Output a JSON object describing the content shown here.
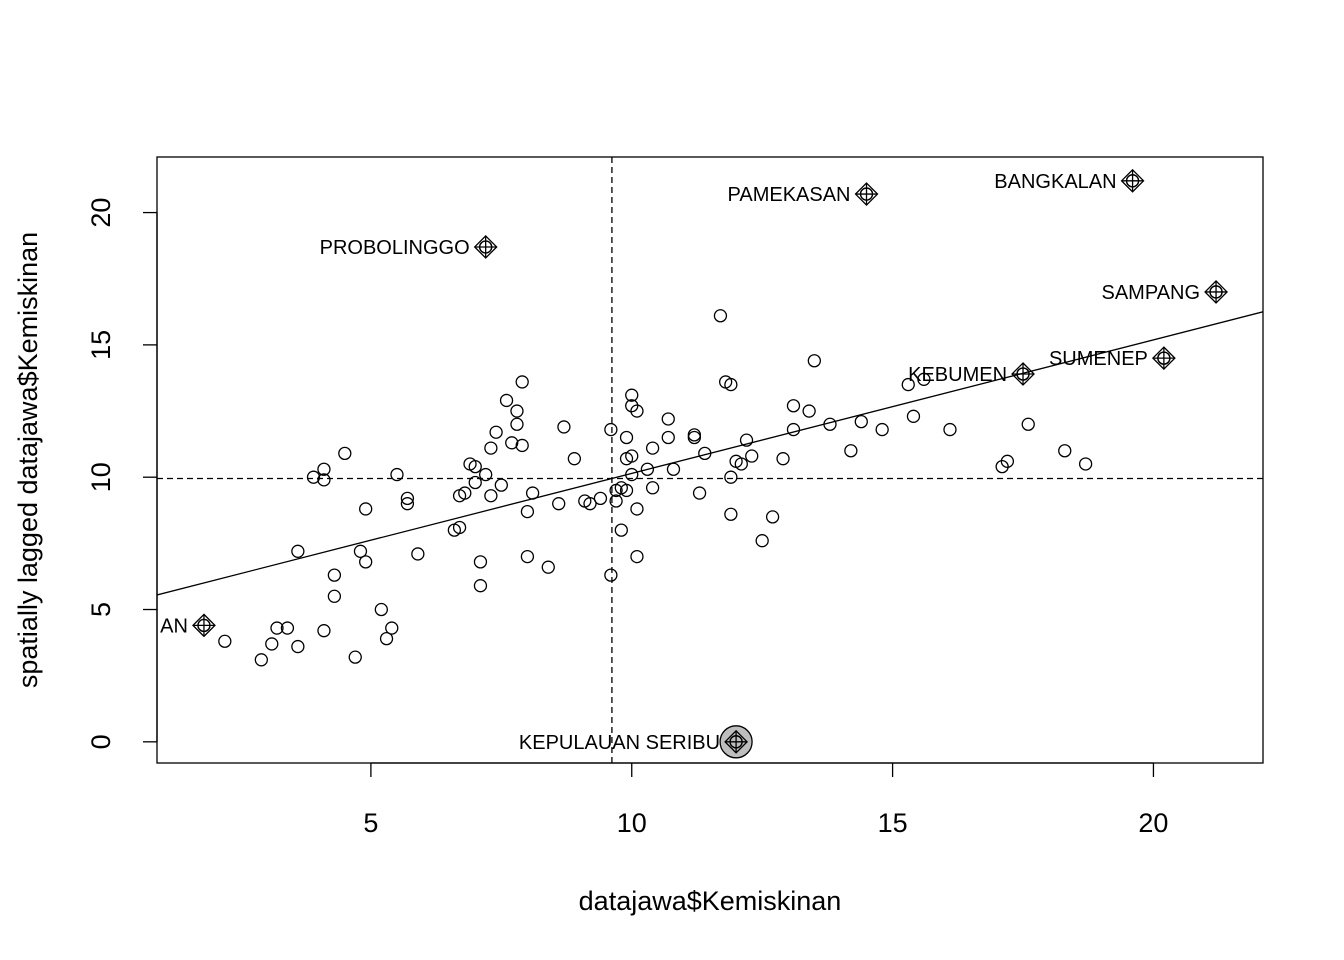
{
  "chart_data": {
    "type": "scatter",
    "title": "",
    "xlabel": "datajawa$Kemiskinan",
    "ylabel": "spatially lagged datajawa$Kemiskinan",
    "xlim": [
      0.9,
      22.1
    ],
    "ylim": [
      -0.8,
      22.1
    ],
    "x_ticks": [
      "5",
      "10",
      "15",
      "20"
    ],
    "y_ticks": [
      "0",
      "5",
      "10",
      "15",
      "20"
    ],
    "grid": false,
    "legend": "none",
    "mean_x": 9.62,
    "mean_y": 9.95,
    "regression": {
      "x0": 0.9,
      "y0": 5.55,
      "x1": 22.1,
      "y1": 16.25
    },
    "points": [
      [
        12.0,
        0.0
      ],
      [
        1.8,
        4.4
      ],
      [
        7.2,
        18.7
      ],
      [
        14.5,
        20.7
      ],
      [
        19.6,
        21.2
      ],
      [
        21.2,
        17.0
      ],
      [
        20.2,
        14.5
      ],
      [
        17.5,
        13.9
      ],
      [
        2.2,
        3.8
      ],
      [
        2.9,
        3.1
      ],
      [
        3.1,
        3.7
      ],
      [
        3.2,
        4.3
      ],
      [
        3.4,
        4.3
      ],
      [
        3.6,
        3.6
      ],
      [
        3.6,
        7.2
      ],
      [
        3.9,
        10.0
      ],
      [
        4.1,
        10.3
      ],
      [
        4.1,
        9.9
      ],
      [
        4.1,
        4.2
      ],
      [
        4.3,
        6.3
      ],
      [
        4.3,
        5.5
      ],
      [
        4.5,
        10.9
      ],
      [
        4.7,
        3.2
      ],
      [
        4.8,
        7.2
      ],
      [
        4.9,
        8.8
      ],
      [
        4.9,
        6.8
      ],
      [
        5.2,
        5.0
      ],
      [
        5.3,
        3.9
      ],
      [
        5.4,
        4.3
      ],
      [
        5.5,
        10.1
      ],
      [
        5.7,
        9.2
      ],
      [
        5.7,
        9.0
      ],
      [
        5.9,
        7.1
      ],
      [
        6.6,
        8.0
      ],
      [
        6.7,
        8.1
      ],
      [
        6.7,
        9.3
      ],
      [
        6.8,
        9.4
      ],
      [
        6.9,
        10.5
      ],
      [
        7.0,
        10.4
      ],
      [
        7.0,
        9.8
      ],
      [
        7.1,
        6.8
      ],
      [
        7.1,
        5.9
      ],
      [
        7.2,
        10.1
      ],
      [
        7.3,
        11.1
      ],
      [
        7.3,
        9.3
      ],
      [
        7.4,
        11.7
      ],
      [
        7.5,
        9.7
      ],
      [
        7.6,
        12.9
      ],
      [
        7.7,
        11.3
      ],
      [
        7.8,
        12.5
      ],
      [
        7.8,
        12.0
      ],
      [
        7.9,
        11.2
      ],
      [
        7.9,
        13.6
      ],
      [
        8.0,
        8.7
      ],
      [
        8.0,
        7.0
      ],
      [
        8.1,
        9.4
      ],
      [
        8.4,
        6.6
      ],
      [
        8.6,
        9.0
      ],
      [
        8.7,
        11.9
      ],
      [
        8.9,
        10.7
      ],
      [
        9.1,
        9.1
      ],
      [
        9.2,
        9.0
      ],
      [
        9.4,
        9.2
      ],
      [
        9.6,
        11.8
      ],
      [
        9.6,
        6.3
      ],
      [
        9.7,
        9.1
      ],
      [
        9.7,
        9.5
      ],
      [
        9.8,
        8.0
      ],
      [
        9.8,
        9.6
      ],
      [
        9.9,
        11.5
      ],
      [
        9.9,
        10.7
      ],
      [
        9.9,
        9.5
      ],
      [
        10.0,
        13.1
      ],
      [
        10.0,
        12.7
      ],
      [
        10.0,
        10.8
      ],
      [
        10.0,
        10.1
      ],
      [
        10.1,
        12.5
      ],
      [
        10.1,
        8.8
      ],
      [
        10.1,
        7.0
      ],
      [
        10.3,
        10.3
      ],
      [
        10.4,
        11.1
      ],
      [
        10.4,
        9.6
      ],
      [
        10.7,
        12.2
      ],
      [
        10.7,
        11.5
      ],
      [
        10.8,
        10.3
      ],
      [
        11.2,
        11.6
      ],
      [
        11.2,
        11.5
      ],
      [
        11.3,
        9.4
      ],
      [
        11.4,
        10.9
      ],
      [
        11.7,
        16.1
      ],
      [
        11.8,
        13.6
      ],
      [
        11.9,
        13.5
      ],
      [
        11.9,
        10.0
      ],
      [
        11.9,
        8.6
      ],
      [
        12.0,
        10.6
      ],
      [
        12.1,
        10.5
      ],
      [
        12.2,
        11.4
      ],
      [
        12.3,
        10.8
      ],
      [
        12.5,
        7.6
      ],
      [
        12.7,
        8.5
      ],
      [
        12.9,
        10.7
      ],
      [
        13.1,
        12.7
      ],
      [
        13.1,
        11.8
      ],
      [
        13.4,
        12.5
      ],
      [
        13.5,
        14.4
      ],
      [
        13.8,
        12.0
      ],
      [
        14.2,
        11.0
      ],
      [
        14.4,
        12.1
      ],
      [
        14.8,
        11.8
      ],
      [
        15.3,
        13.5
      ],
      [
        15.4,
        12.3
      ],
      [
        15.6,
        13.7
      ],
      [
        16.1,
        11.8
      ],
      [
        17.1,
        10.4
      ],
      [
        17.2,
        10.6
      ],
      [
        17.6,
        12.0
      ],
      [
        18.3,
        11.0
      ],
      [
        18.7,
        10.5
      ]
    ],
    "influential": [
      {
        "label": "KEPULAUAN SERIBU",
        "x": 12.0,
        "y": 0.0,
        "anchor": "left",
        "highlight": true
      },
      {
        "label": "BANGKALAN",
        "x": 19.6,
        "y": 21.2,
        "anchor": "left"
      },
      {
        "label": "PAMEKASAN",
        "x": 14.5,
        "y": 20.7,
        "anchor": "left"
      },
      {
        "label": "PROBOLINGGO",
        "x": 7.2,
        "y": 18.7,
        "anchor": "left"
      },
      {
        "label": "SAMPANG",
        "x": 21.2,
        "y": 17.0,
        "anchor": "left"
      },
      {
        "label": "SUMENEP",
        "x": 20.2,
        "y": 14.5,
        "anchor": "left"
      },
      {
        "label": "KEBUMEN",
        "x": 17.5,
        "y": 13.9,
        "anchor": "left"
      },
      {
        "label": "AN",
        "x": 1.8,
        "y": 4.4,
        "anchor": "left"
      }
    ]
  }
}
